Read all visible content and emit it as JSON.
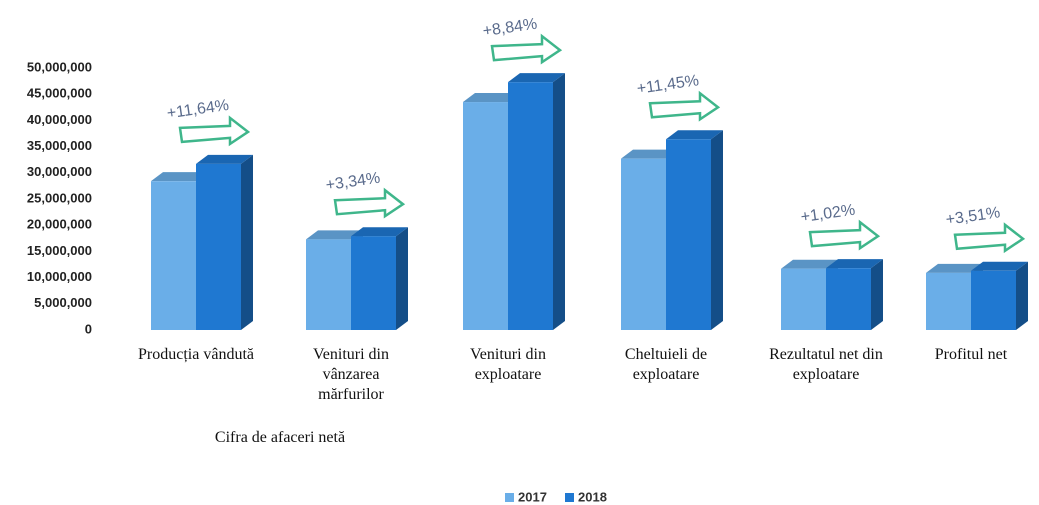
{
  "chart_data": {
    "type": "bar",
    "categories": [
      "Producția vândută",
      "Venituri din\nvânzarea\nmărfurilor",
      "Venituri din\nexploatare",
      "Cheltuieli de\nexploatare",
      "Rezultatul net din\nexploatare",
      "Profitul net"
    ],
    "group_label": "Cifra de afaceri netă",
    "series": [
      {
        "name": "2017",
        "color": "#6aaee8",
        "values": [
          28400000,
          17300000,
          43500000,
          32700000,
          11700000,
          10900000
        ]
      },
      {
        "name": "2018",
        "color": "#1f78d1",
        "values": [
          31700000,
          17900000,
          47300000,
          36400000,
          11800000,
          11300000
        ]
      }
    ],
    "annotations": [
      "+11,64%",
      "+3,34%",
      "+8,84%",
      "+11,45%",
      "+1,02%",
      "+3,51%"
    ],
    "ylim": [
      0,
      50000000
    ],
    "yticks": [
      0,
      {
        "value": 5000000,
        "label": "5,000,000"
      },
      {
        "value": 10000000,
        "label": "10,000,000"
      },
      {
        "value": 15000000,
        "label": "15,000,000"
      },
      {
        "value": 20000000,
        "label": "20,000,000"
      },
      {
        "value": 25000000,
        "label": "25,000,000"
      },
      {
        "value": 30000000,
        "label": "30,000,000"
      },
      {
        "value": 35000000,
        "label": "35,000,000"
      },
      {
        "value": 40000000,
        "label": "40,000,000"
      },
      {
        "value": 45000000,
        "label": "45,000,000"
      },
      {
        "value": 50000000,
        "label": "50,000,000"
      }
    ],
    "legend": "bottom",
    "grid": false
  }
}
